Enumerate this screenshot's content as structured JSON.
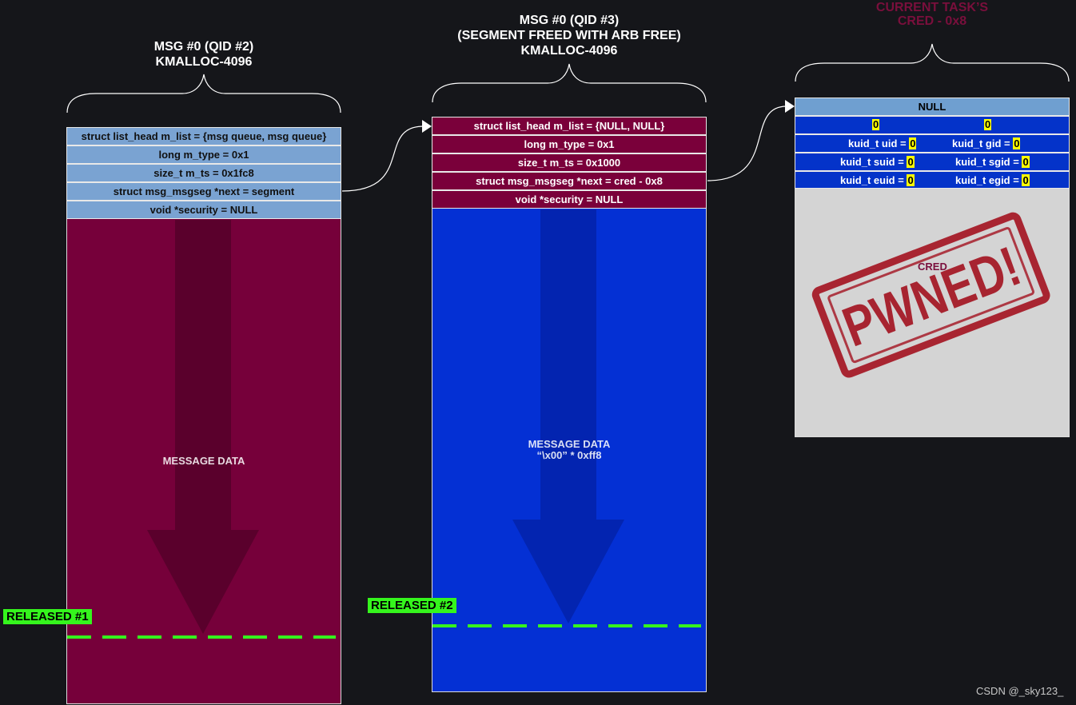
{
  "left": {
    "title_line1": "MSG #0 (QID #2)",
    "title_line2": "KMALLOC-4096",
    "fields": [
      "struct list_head m_list = {msg queue, msg queue}",
      "long m_type = 0x1",
      "size_t m_ts = 0x1fc8",
      "struct msg_msgseg *next = segment",
      "void *security = NULL"
    ],
    "body_label": "MESSAGE DATA",
    "released": "RELEASED #1",
    "colors": {
      "header": "#7aa3d2",
      "body": "#76003a"
    }
  },
  "middle": {
    "title_line1": "MSG #0 (QID #3)",
    "title_line2": "(SEGMENT FREED WITH ARB FREE)",
    "title_line3": "KMALLOC-4096",
    "fields": [
      "struct list_head m_list = {NULL, NULL}",
      "long m_type = 0x1",
      "size_t m_ts = 0x1000",
      "struct msg_msgseg *next = cred  - 0x8",
      "void *security = NULL"
    ],
    "body_label_line1": "MESSAGE DATA",
    "body_label_line2": "“\\x00” * 0xff8",
    "released": "RELEASED #2",
    "colors": {
      "header": "#7a003a",
      "body": "#0430d4"
    }
  },
  "right": {
    "title_line1": "CURRENT TASK’S",
    "title_line2": "CRED - 0x8",
    "null_row": "NULL",
    "zero": "0",
    "kuid": {
      "uid": "kuid_t uid = ",
      "gid": "kuid_t gid = ",
      "suid": "kuid_t suid = ",
      "sgid": "kuid_t sgid = ",
      "euid": "kuid_t euid = ",
      "egid": "kuid_t egid = "
    },
    "body_label": "CRED",
    "stamp": "PWNED!",
    "colors": {
      "row": "#0433c9",
      "body": "#d4d4d4",
      "stamp": "#a3121f"
    }
  },
  "watermark": "CSDN @_sky123_"
}
